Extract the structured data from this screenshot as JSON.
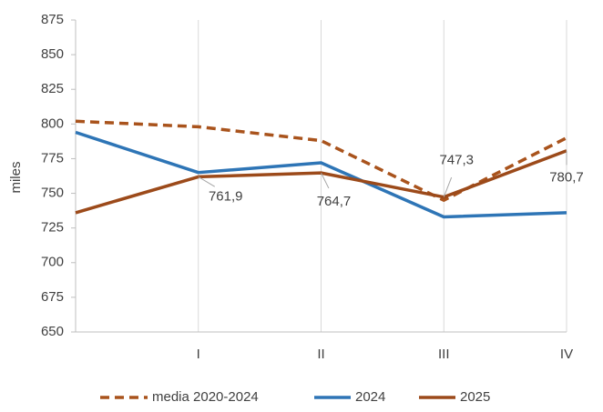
{
  "chart_data": {
    "type": "line",
    "y_label": "miles",
    "categories": [
      null,
      "I",
      "II",
      "III",
      "IV"
    ],
    "series": [
      {
        "name": "media 2020-2024",
        "color": "#a9531c",
        "dashed": true,
        "values": [
          802,
          798,
          788,
          745,
          790
        ]
      },
      {
        "name": "2024",
        "color": "#2e75b6",
        "values": [
          794,
          765,
          772,
          733,
          736
        ]
      },
      {
        "name": "2025",
        "color": "#9c4a1a",
        "values": [
          736,
          761.9,
          764.7,
          747.3,
          780.7
        ],
        "value_labels": [
          null,
          "761,9",
          "764,7",
          "747,3",
          "780,7"
        ]
      }
    ],
    "ylim": [
      650,
      875
    ],
    "yticks": [
      650,
      675,
      700,
      725,
      750,
      775,
      800,
      825,
      850,
      875
    ],
    "grid": "x",
    "legend": "bottom"
  }
}
